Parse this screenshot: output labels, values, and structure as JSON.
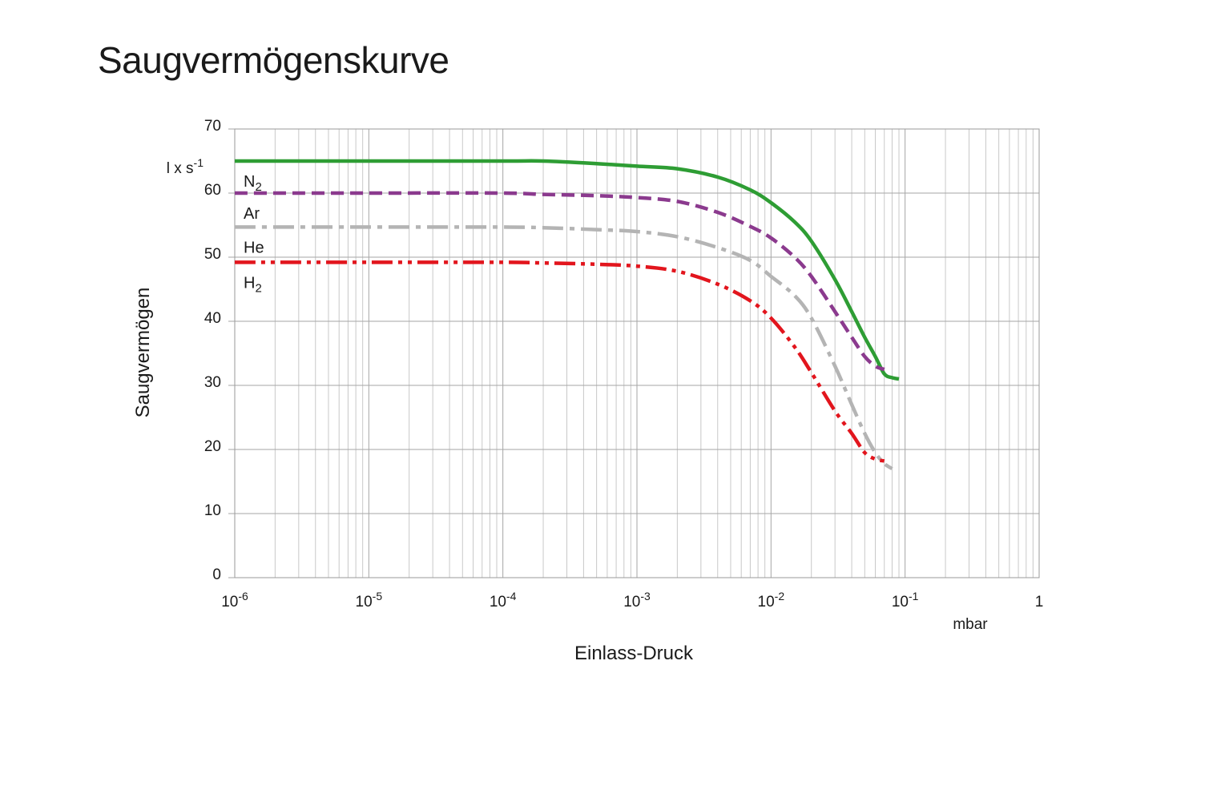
{
  "chart_data": {
    "type": "line",
    "title": "Saugvermögenskurve",
    "xlabel": "Einlass-Druck",
    "x_unit": "mbar",
    "ylabel": "Saugvermögen",
    "y_unit": "l x s-1",
    "x_scale": "log",
    "xlim": [
      1e-06,
      1
    ],
    "ylim": [
      0,
      70
    ],
    "y_ticks": [
      0,
      10,
      20,
      30,
      40,
      50,
      60,
      70
    ],
    "x_ticks": [
      {
        "value": 1e-06,
        "base": "10",
        "exp": "-6"
      },
      {
        "value": 1e-05,
        "base": "10",
        "exp": "-5"
      },
      {
        "value": 0.0001,
        "base": "10",
        "exp": "-4"
      },
      {
        "value": 0.001,
        "base": "10",
        "exp": "-3"
      },
      {
        "value": 0.01,
        "base": "10",
        "exp": "-2"
      },
      {
        "value": 0.1,
        "base": "10",
        "exp": "-1"
      },
      {
        "value": 1,
        "base": "1",
        "exp": ""
      }
    ],
    "grid": true,
    "series": [
      {
        "name": "N2",
        "label_base": "N",
        "label_sub": "2",
        "color": "#2e9d34",
        "style": "solid",
        "x": [
          1e-06,
          1e-05,
          0.0001,
          0.0002,
          0.0005,
          0.001,
          0.002,
          0.004,
          0.007,
          0.01,
          0.015,
          0.02,
          0.03,
          0.04,
          0.05,
          0.06,
          0.07,
          0.08,
          0.09
        ],
        "y": [
          65,
          65,
          65,
          65,
          64.6,
          64.2,
          63.8,
          62.5,
          60.5,
          58.5,
          55.5,
          52.5,
          46.5,
          41.5,
          37.5,
          34.5,
          31.8,
          31.2,
          31
        ]
      },
      {
        "name": "Ar",
        "label_base": "Ar",
        "label_sub": "",
        "color": "#8b3a8e",
        "style": "dashed",
        "x": [
          1e-06,
          1e-05,
          0.0001,
          0.0002,
          0.0005,
          0.001,
          0.002,
          0.004,
          0.007,
          0.01,
          0.015,
          0.02,
          0.03,
          0.04,
          0.05,
          0.06,
          0.07
        ],
        "y": [
          60,
          60,
          60,
          59.8,
          59.6,
          59.3,
          58.7,
          57,
          54.8,
          53,
          50,
          47,
          41.5,
          37.5,
          34.5,
          33,
          32.5
        ]
      },
      {
        "name": "He",
        "label_base": "He",
        "label_sub": "",
        "color": "#b4b4b4",
        "style": "dashdot",
        "x": [
          1e-06,
          1e-05,
          0.0001,
          0.0002,
          0.0005,
          0.001,
          0.002,
          0.004,
          0.007,
          0.01,
          0.015,
          0.02,
          0.03,
          0.04,
          0.05,
          0.06,
          0.07,
          0.08
        ],
        "y": [
          54.7,
          54.7,
          54.7,
          54.6,
          54.3,
          54,
          53.2,
          51.5,
          49.5,
          47,
          44,
          40.5,
          33,
          27,
          22.5,
          19.5,
          17.8,
          17
        ]
      },
      {
        "name": "H2",
        "label_base": "H",
        "label_sub": "2",
        "color": "#e2151d",
        "style": "dashdotdot",
        "x": [
          1e-06,
          1e-05,
          0.0001,
          0.0002,
          0.0005,
          0.001,
          0.002,
          0.004,
          0.007,
          0.01,
          0.015,
          0.02,
          0.03,
          0.04,
          0.05,
          0.06,
          0.07
        ],
        "y": [
          49.2,
          49.2,
          49.2,
          49.1,
          48.9,
          48.6,
          47.8,
          45.8,
          43.2,
          40.5,
          36,
          32,
          26,
          22.5,
          19.5,
          18.5,
          18.2
        ]
      }
    ]
  }
}
